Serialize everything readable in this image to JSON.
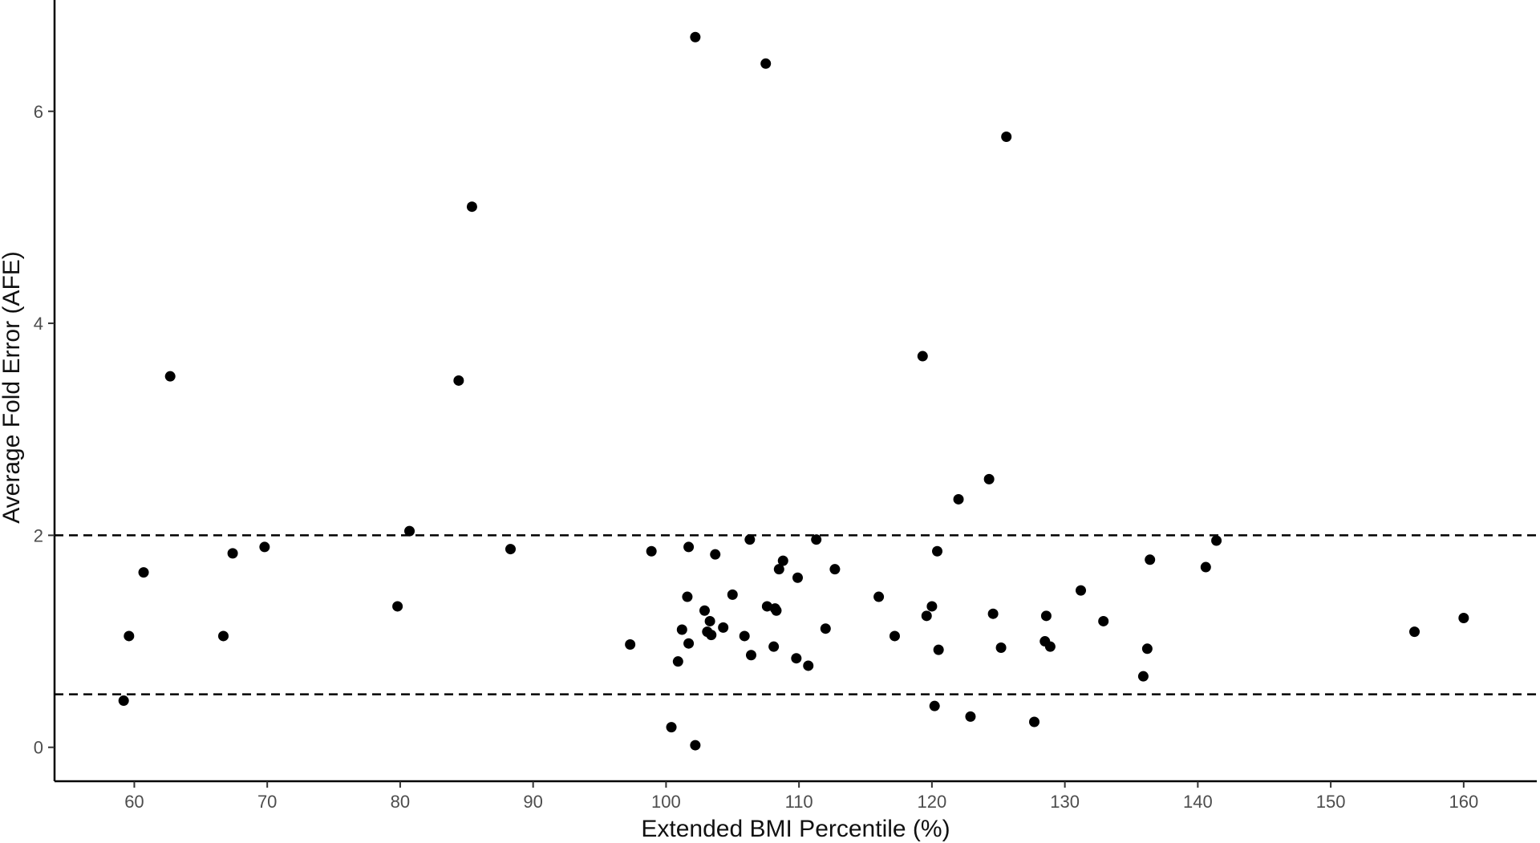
{
  "chart_data": {
    "type": "scatter",
    "xlabel": "Extended BMI Percentile (%)",
    "ylabel": "Average Fold Error (AFE)",
    "xlim": [
      54,
      165.5
    ],
    "ylim": [
      -0.32,
      7.05
    ],
    "x_ticks": [
      60,
      70,
      80,
      90,
      100,
      110,
      120,
      130,
      140,
      150,
      160
    ],
    "y_ticks": [
      0,
      2,
      4,
      6
    ],
    "grid": false,
    "reference_lines": [
      {
        "orientation": "horizontal",
        "y": 2,
        "style": "dashed"
      },
      {
        "orientation": "horizontal",
        "y": 0.5,
        "style": "dashed"
      }
    ],
    "point_color": "#000000",
    "points": [
      {
        "x": 59.2,
        "y": 0.44
      },
      {
        "x": 59.6,
        "y": 1.05
      },
      {
        "x": 60.7,
        "y": 1.65
      },
      {
        "x": 62.7,
        "y": 3.5
      },
      {
        "x": 66.7,
        "y": 1.05
      },
      {
        "x": 67.4,
        "y": 1.83
      },
      {
        "x": 69.8,
        "y": 1.89
      },
      {
        "x": 79.8,
        "y": 1.33
      },
      {
        "x": 80.7,
        "y": 2.04
      },
      {
        "x": 84.4,
        "y": 3.46
      },
      {
        "x": 85.4,
        "y": 5.1
      },
      {
        "x": 88.3,
        "y": 1.87
      },
      {
        "x": 97.3,
        "y": 0.97
      },
      {
        "x": 98.9,
        "y": 1.85
      },
      {
        "x": 100.4,
        "y": 0.19
      },
      {
        "x": 100.9,
        "y": 0.81
      },
      {
        "x": 101.2,
        "y": 1.11
      },
      {
        "x": 101.6,
        "y": 1.42
      },
      {
        "x": 101.7,
        "y": 0.98
      },
      {
        "x": 101.7,
        "y": 1.89
      },
      {
        "x": 102.2,
        "y": 6.7
      },
      {
        "x": 102.2,
        "y": 0.02
      },
      {
        "x": 102.9,
        "y": 1.29
      },
      {
        "x": 103.1,
        "y": 1.09
      },
      {
        "x": 103.3,
        "y": 1.19
      },
      {
        "x": 103.4,
        "y": 1.06
      },
      {
        "x": 103.7,
        "y": 1.82
      },
      {
        "x": 104.3,
        "y": 1.13
      },
      {
        "x": 105.0,
        "y": 1.44
      },
      {
        "x": 105.9,
        "y": 1.05
      },
      {
        "x": 106.3,
        "y": 1.96
      },
      {
        "x": 106.4,
        "y": 0.87
      },
      {
        "x": 107.5,
        "y": 6.45
      },
      {
        "x": 107.6,
        "y": 1.33
      },
      {
        "x": 108.1,
        "y": 0.95
      },
      {
        "x": 108.2,
        "y": 1.31
      },
      {
        "x": 108.3,
        "y": 1.29
      },
      {
        "x": 108.5,
        "y": 1.68
      },
      {
        "x": 108.8,
        "y": 1.76
      },
      {
        "x": 109.8,
        "y": 0.84
      },
      {
        "x": 109.9,
        "y": 1.6
      },
      {
        "x": 110.7,
        "y": 0.77
      },
      {
        "x": 111.3,
        "y": 1.96
      },
      {
        "x": 112.0,
        "y": 1.12
      },
      {
        "x": 112.7,
        "y": 1.68
      },
      {
        "x": 116.0,
        "y": 1.42
      },
      {
        "x": 117.2,
        "y": 1.05
      },
      {
        "x": 119.3,
        "y": 3.69
      },
      {
        "x": 119.6,
        "y": 1.24
      },
      {
        "x": 120.0,
        "y": 1.33
      },
      {
        "x": 120.2,
        "y": 0.39
      },
      {
        "x": 120.4,
        "y": 1.85
      },
      {
        "x": 120.5,
        "y": 0.92
      },
      {
        "x": 122.0,
        "y": 2.34
      },
      {
        "x": 122.9,
        "y": 0.29
      },
      {
        "x": 124.3,
        "y": 2.53
      },
      {
        "x": 124.6,
        "y": 1.26
      },
      {
        "x": 125.2,
        "y": 0.94
      },
      {
        "x": 125.6,
        "y": 5.76
      },
      {
        "x": 127.7,
        "y": 0.24
      },
      {
        "x": 128.5,
        "y": 1.0
      },
      {
        "x": 128.6,
        "y": 1.24
      },
      {
        "x": 128.9,
        "y": 0.95
      },
      {
        "x": 131.2,
        "y": 1.48
      },
      {
        "x": 132.9,
        "y": 1.19
      },
      {
        "x": 135.9,
        "y": 0.67
      },
      {
        "x": 136.2,
        "y": 0.93
      },
      {
        "x": 136.4,
        "y": 1.77
      },
      {
        "x": 140.6,
        "y": 1.7
      },
      {
        "x": 141.4,
        "y": 1.95
      },
      {
        "x": 156.3,
        "y": 1.09
      },
      {
        "x": 160.0,
        "y": 1.22
      }
    ]
  }
}
